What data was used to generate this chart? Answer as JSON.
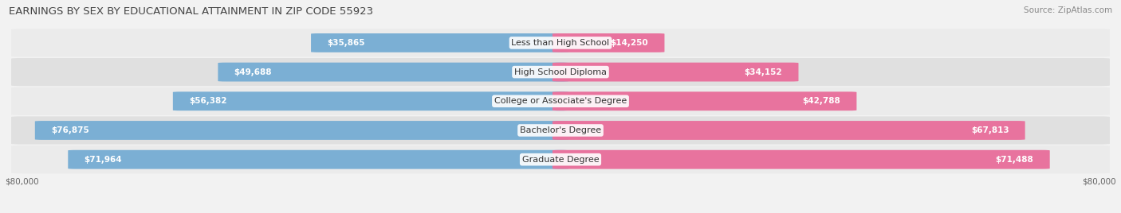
{
  "title": "EARNINGS BY SEX BY EDUCATIONAL ATTAINMENT IN ZIP CODE 55923",
  "source": "Source: ZipAtlas.com",
  "categories": [
    "Less than High School",
    "High School Diploma",
    "College or Associate's Degree",
    "Bachelor's Degree",
    "Graduate Degree"
  ],
  "male_values": [
    35865,
    49688,
    56382,
    76875,
    71964
  ],
  "female_values": [
    14250,
    34152,
    42788,
    67813,
    71488
  ],
  "male_color": "#7bafd4",
  "female_color": "#e8739e",
  "max_val": 80000,
  "bg_color": "#f2f2f2",
  "row_light": "#ebebeb",
  "row_dark": "#e0e0e0",
  "title_fontsize": 9.5,
  "label_fontsize": 8,
  "value_fontsize": 7.5,
  "axis_label_fontsize": 7.5,
  "source_fontsize": 7.5
}
